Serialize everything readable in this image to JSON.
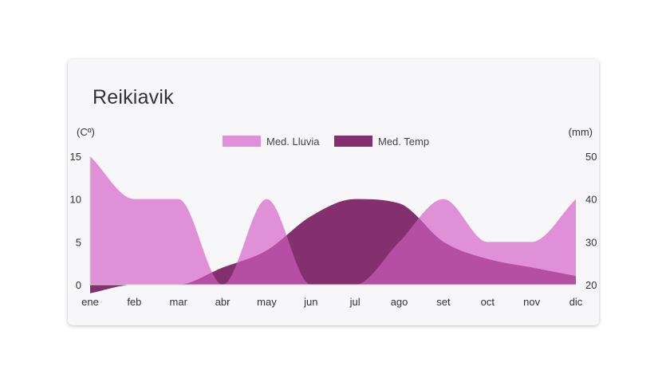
{
  "chart_data": {
    "type": "area",
    "title": "Reikiavik",
    "categories": [
      "ene",
      "feb",
      "mar",
      "abr",
      "may",
      "jun",
      "jul",
      "ago",
      "set",
      "oct",
      "nov",
      "dic"
    ],
    "y_left": {
      "label": "(Cº)",
      "ticks": [
        0,
        5,
        10,
        15
      ],
      "range": [
        0,
        15
      ]
    },
    "y_right": {
      "label": "(mm)",
      "ticks": [
        20,
        30,
        40,
        50
      ],
      "range": [
        20,
        50
      ]
    },
    "legend_position": "top",
    "series": [
      {
        "name": "Med. Lluvia",
        "axis": "left",
        "color": "#df90d6",
        "values": [
          15,
          10,
          10,
          0,
          10,
          0,
          0,
          5,
          10,
          5,
          5,
          10
        ]
      },
      {
        "name": "Med. Temp",
        "axis": "right",
        "color": "#84306f",
        "values": [
          18,
          20,
          20,
          24,
          28,
          36,
          40,
          39,
          30,
          26,
          24,
          22
        ]
      }
    ],
    "overlap_color": "#b54fa3",
    "grid": false
  }
}
